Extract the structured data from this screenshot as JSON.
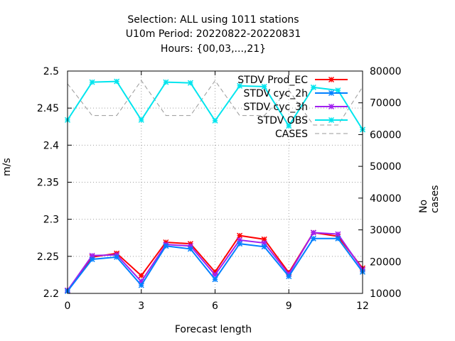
{
  "chart_data": {
    "type": "line",
    "title_lines": [
      "Selection: ALL using  1011 stations",
      "U10m   Period: 20220822-20220831",
      "Hours: {00,03,...,21}"
    ],
    "xlabel": "Forecast length",
    "ylabel": "m/s",
    "y2label": "No cases",
    "xlim": [
      0,
      12
    ],
    "ylim": [
      2.2,
      2.5
    ],
    "y2lim": [
      10000,
      80000
    ],
    "x_ticks": [
      0,
      3,
      6,
      9,
      12
    ],
    "y_ticks": [
      2.2,
      2.25,
      2.3,
      2.35,
      2.4,
      2.45,
      2.5
    ],
    "y_tick_labels": [
      "2.2",
      "2.25",
      "2.3",
      "2.35",
      "2.4",
      "2.45",
      "2.5"
    ],
    "y2_ticks": [
      10000,
      20000,
      30000,
      40000,
      50000,
      60000,
      70000,
      80000
    ],
    "grid": true,
    "legend_position": "top-right",
    "x": [
      0,
      1,
      2,
      3,
      4,
      5,
      6,
      7,
      8,
      9,
      10,
      11,
      12
    ],
    "series": [
      {
        "name": "STDV Prod_EC",
        "color": "#ff0000",
        "marker": "x",
        "axis": "y1",
        "values": [
          2.204,
          2.249,
          2.254,
          2.224,
          2.269,
          2.267,
          2.229,
          2.278,
          2.273,
          2.228,
          2.282,
          2.277,
          2.234
        ]
      },
      {
        "name": "STDV cyc_2h",
        "color": "#0080ff",
        "marker": "x",
        "axis": "y1",
        "values": [
          2.203,
          2.246,
          2.249,
          2.211,
          2.264,
          2.26,
          2.219,
          2.267,
          2.263,
          2.223,
          2.274,
          2.274,
          2.229
        ]
      },
      {
        "name": "STDV cyc_3h",
        "color": "#a020f0",
        "marker": "x",
        "axis": "y1",
        "values": [
          2.204,
          2.251,
          2.252,
          2.216,
          2.266,
          2.264,
          2.225,
          2.272,
          2.268,
          2.226,
          2.282,
          2.28,
          2.232
        ]
      },
      {
        "name": "STDV OBS",
        "color": "#00e5ee",
        "marker": "x",
        "axis": "y1",
        "values": [
          2.434,
          2.485,
          2.486,
          2.434,
          2.485,
          2.484,
          2.433,
          2.48,
          2.479,
          2.426,
          2.478,
          2.474,
          2.421
        ]
      },
      {
        "name": "CASES",
        "color": "#999999",
        "marker": "none",
        "dash": true,
        "axis": "y2",
        "values": [
          76000,
          66000,
          66000,
          77000,
          66000,
          66000,
          77000,
          66000,
          66000,
          74000,
          63000,
          63000,
          75000
        ]
      }
    ]
  }
}
